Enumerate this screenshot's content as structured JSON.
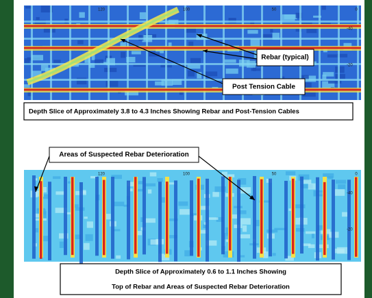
{
  "top_scan": {
    "x_axis_labels": [
      "120",
      "100",
      "50",
      "0"
    ],
    "y_axis_labels": [
      "-40",
      "-20"
    ],
    "callouts": [
      "Rebar (typical)",
      "Post Tension Cable"
    ],
    "caption": "Depth Slice of Approximately 3.8 to 4.3 Inches Showing Rebar and Post-Tension Cables"
  },
  "deterioration_label": "Areas of Suspected Rebar Deterioration",
  "bottom_scan": {
    "x_axis_labels": [
      "120",
      "100",
      "50",
      "0"
    ],
    "y_axis_labels": [
      "-40",
      "-20"
    ],
    "caption_lines": [
      "Depth Slice of Approximately 0.6 to 1.1 Inches Showing",
      "Top of Rebar and Areas of Suspected Rebar Deterioration"
    ]
  }
}
